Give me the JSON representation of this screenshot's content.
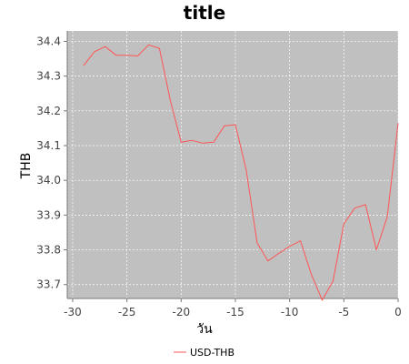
{
  "chart_data": {
    "type": "line",
    "title": "title",
    "xlabel": "วัน",
    "ylabel": "THB",
    "xlim": [
      -30.5,
      0
    ],
    "ylim": [
      33.66,
      34.43
    ],
    "xticks": [
      -30,
      -25,
      -20,
      -15,
      -10,
      -5,
      0
    ],
    "yticks": [
      33.7,
      33.8,
      33.9,
      34.0,
      34.1,
      34.2,
      34.3,
      34.4
    ],
    "ytick_labels": [
      "33.7",
      "33.8",
      "33.9",
      "34.0",
      "34.1",
      "34.2",
      "34.3",
      "34.4"
    ],
    "grid": true,
    "legend": "bottom-center",
    "colors": {
      "plot_bg": "#c0c0c0",
      "grid": "#ffffff",
      "series": "#ff5555"
    },
    "series": [
      {
        "name": "USD-THB",
        "x": [
          -29,
          -28,
          -27,
          -26,
          -25,
          -24,
          -23,
          -22,
          -21,
          -20,
          -19,
          -18,
          -17,
          -16,
          -15,
          -14,
          -13,
          -12,
          -11,
          -10,
          -9,
          -8,
          -7,
          -6,
          -5,
          -4,
          -3,
          -2,
          -1,
          0
        ],
        "values": [
          34.33,
          34.37,
          34.385,
          34.36,
          34.36,
          34.358,
          34.39,
          34.38,
          34.23,
          34.11,
          34.115,
          34.107,
          34.11,
          34.157,
          34.16,
          34.03,
          33.82,
          33.768,
          33.79,
          33.81,
          33.826,
          33.73,
          33.655,
          33.71,
          33.875,
          33.92,
          33.93,
          33.8,
          33.895,
          34.165
        ]
      }
    ]
  }
}
